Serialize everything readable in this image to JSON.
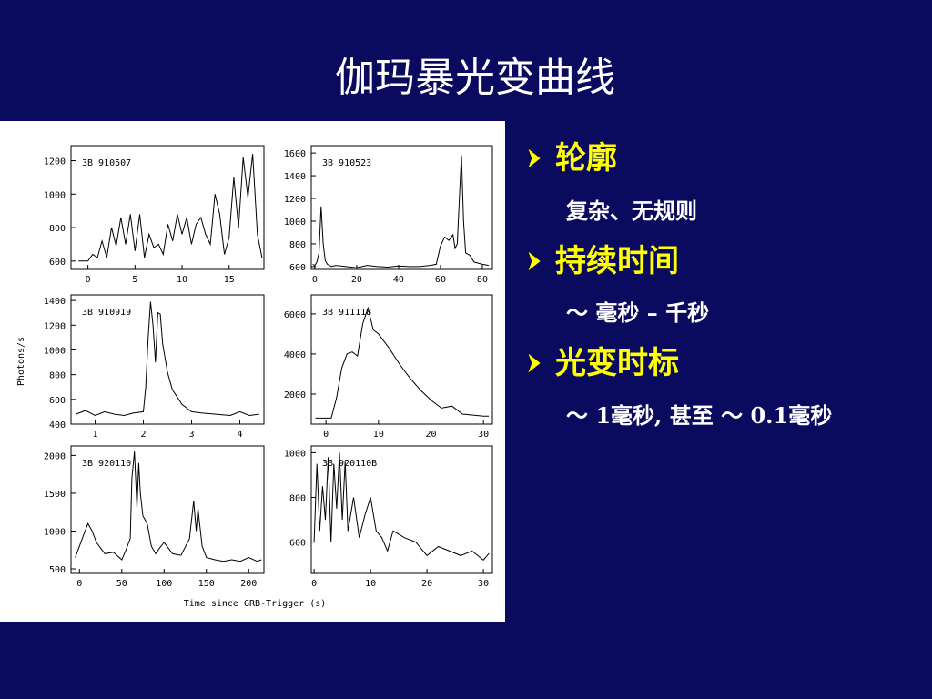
{
  "title": "伽玛暴光变曲线",
  "figure": {
    "y_label": "Photons/s",
    "x_label": "Time since GRB-Trigger (s)",
    "panels": [
      {
        "label": "3B 910507",
        "xlim": [
          -1.8,
          18.7
        ],
        "ylim": [
          550,
          1290
        ],
        "xticks": [
          0,
          5,
          10,
          15
        ],
        "yticks": [
          600,
          800,
          1000,
          1200
        ],
        "x": [
          -1,
          0,
          0.5,
          1,
          1.5,
          2,
          2.5,
          3,
          3.5,
          4,
          4.5,
          5,
          5.5,
          6,
          6.5,
          7,
          7.5,
          8,
          8.5,
          9,
          9.5,
          10,
          10.5,
          11,
          11.5,
          12,
          12.5,
          13,
          13.5,
          14,
          14.5,
          15,
          15.5,
          16,
          16.5,
          17,
          17.5,
          18,
          18.5
        ],
        "y": [
          600,
          600,
          640,
          620,
          720,
          620,
          800,
          690,
          860,
          700,
          880,
          660,
          880,
          620,
          760,
          680,
          700,
          640,
          820,
          720,
          880,
          760,
          860,
          700,
          820,
          860,
          760,
          700,
          1000,
          880,
          640,
          740,
          1100,
          800,
          1220,
          980,
          1240,
          760,
          620
        ]
      },
      {
        "label": "3B 910523",
        "xlim": [
          -1.7,
          84.8
        ],
        "ylim": [
          575,
          1665
        ],
        "xticks": [
          0,
          20,
          40,
          60,
          80
        ],
        "yticks": [
          600,
          800,
          1000,
          1200,
          1400,
          1600
        ],
        "x": [
          -1,
          0,
          1,
          2,
          3,
          4,
          5,
          6,
          8,
          10,
          15,
          20,
          25,
          30,
          35,
          40,
          45,
          50,
          55,
          58,
          60,
          62,
          64,
          66,
          67,
          68,
          69,
          70,
          71,
          72,
          74,
          76,
          78,
          80,
          83
        ],
        "y": [
          620,
          610,
          640,
          720,
          1130,
          800,
          650,
          620,
          600,
          610,
          600,
          590,
          610,
          600,
          595,
          605,
          600,
          600,
          610,
          620,
          780,
          860,
          830,
          880,
          760,
          800,
          1200,
          1580,
          1000,
          720,
          700,
          640,
          630,
          620,
          610
        ]
      },
      {
        "label": "3B 910919",
        "xlim": [
          0.5,
          4.5
        ],
        "ylim": [
          400,
          1445
        ],
        "xticks": [
          1,
          2,
          3,
          4
        ],
        "yticks": [
          400,
          600,
          800,
          1000,
          1200,
          1400
        ],
        "x": [
          0.6,
          0.8,
          1.0,
          1.2,
          1.4,
          1.6,
          1.8,
          2.0,
          2.05,
          2.1,
          2.15,
          2.2,
          2.25,
          2.3,
          2.35,
          2.4,
          2.5,
          2.6,
          2.8,
          3.0,
          3.2,
          3.5,
          3.8,
          4.0,
          4.2,
          4.4
        ],
        "y": [
          480,
          510,
          470,
          500,
          480,
          470,
          490,
          500,
          700,
          1100,
          1390,
          1200,
          900,
          1300,
          1290,
          1050,
          820,
          680,
          560,
          500,
          490,
          480,
          470,
          500,
          470,
          480
        ]
      },
      {
        "label": "3B 911118",
        "xlim": [
          -2.8,
          31.7
        ],
        "ylim": [
          500,
          6950
        ],
        "xticks": [
          0,
          10,
          20,
          30
        ],
        "yticks": [
          2000,
          4000,
          6000
        ],
        "x": [
          -2,
          0,
          1,
          2,
          3,
          4,
          5,
          6,
          7,
          8,
          9,
          10,
          12,
          14,
          16,
          18,
          20,
          22,
          24,
          26,
          28,
          30,
          31
        ],
        "y": [
          800,
          800,
          800,
          1800,
          3300,
          4000,
          4100,
          3900,
          5500,
          6300,
          5200,
          5000,
          4300,
          3500,
          2800,
          2200,
          1700,
          1300,
          1400,
          1000,
          950,
          900,
          900
        ]
      },
      {
        "label": "3B 920110",
        "xlim": [
          -10,
          218
        ],
        "ylim": [
          440,
          2125
        ],
        "xticks": [
          0,
          50,
          100,
          150,
          200
        ],
        "yticks": [
          500,
          1000,
          1500,
          2000
        ],
        "x": [
          -5,
          0,
          5,
          10,
          15,
          20,
          30,
          40,
          50,
          55,
          60,
          62,
          65,
          68,
          70,
          72,
          75,
          80,
          85,
          90,
          95,
          100,
          110,
          120,
          130,
          135,
          138,
          140,
          145,
          150,
          160,
          170,
          180,
          190,
          200,
          210,
          215
        ],
        "y": [
          650,
          800,
          950,
          1100,
          1000,
          850,
          700,
          720,
          620,
          750,
          900,
          1700,
          2050,
          1300,
          1900,
          1500,
          1200,
          1100,
          800,
          700,
          780,
          850,
          700,
          680,
          900,
          1400,
          1000,
          1300,
          800,
          650,
          620,
          600,
          620,
          600,
          650,
          600,
          620
        ]
      },
      {
        "label": "3B 920110B",
        "xlim": [
          -0.5,
          31.6
        ],
        "ylim": [
          460,
          1030
        ],
        "xticks": [
          0,
          10,
          20,
          30
        ],
        "yticks": [
          600,
          800,
          1000
        ],
        "x": [
          0,
          0.5,
          1,
          1.5,
          2,
          2.5,
          3,
          3.5,
          4,
          4.5,
          5,
          5.5,
          6,
          7,
          8,
          9,
          10,
          11,
          12,
          13,
          14,
          16,
          18,
          20,
          22,
          24,
          26,
          28,
          30,
          31
        ],
        "y": [
          600,
          950,
          650,
          850,
          700,
          980,
          600,
          950,
          750,
          1000,
          700,
          960,
          650,
          800,
          620,
          720,
          800,
          650,
          620,
          560,
          650,
          620,
          600,
          540,
          580,
          560,
          540,
          560,
          520,
          550
        ]
      }
    ]
  },
  "bullets": [
    {
      "heading": "轮廓",
      "text": "复杂、无规则"
    },
    {
      "heading": "持续时间",
      "text": "～ 毫秒 – 千秒"
    },
    {
      "heading": "光变时标",
      "text": "～ 1毫秒, 甚至 ～ 0.1毫秒"
    }
  ]
}
